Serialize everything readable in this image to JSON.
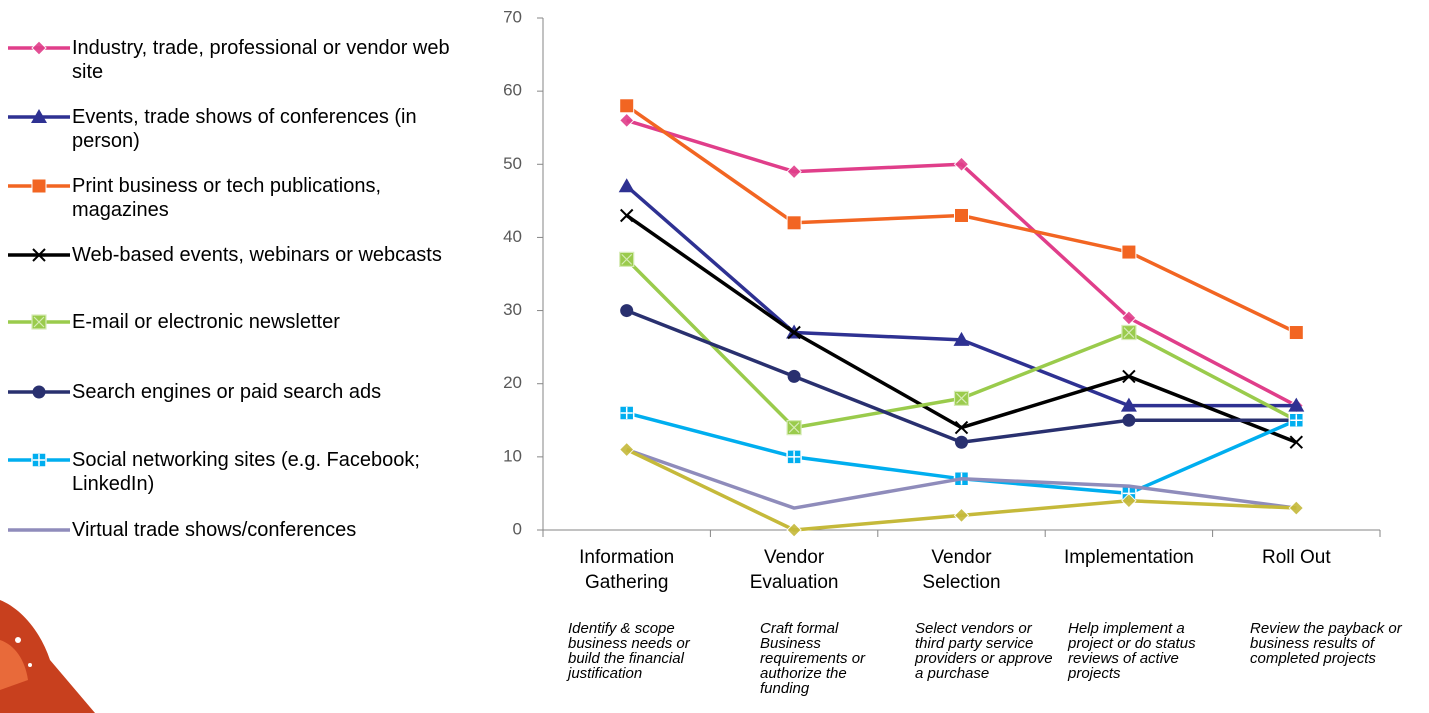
{
  "chart_data": {
    "type": "line",
    "categories": [
      "Information Gathering",
      "Vendor Evaluation",
      "Vendor Selection",
      "Implementation",
      "Roll Out"
    ],
    "category_notes": [
      "Identify & scope business needs or build the financial justification",
      "Craft formal Business requirements or authorize the funding",
      "Select vendors or third party service providers or approve a purchase",
      "Help implement a project or do status reviews of active projects",
      "Review the payback or business results of completed projects"
    ],
    "ylim": [
      0,
      70
    ],
    "yticks": [
      0,
      10,
      20,
      30,
      40,
      50,
      60,
      70
    ],
    "grid": false,
    "legend": "left",
    "series": [
      {
        "name": "Industry, trade, professional or vendor web site",
        "color": "#e03e8a",
        "marker": "diamond",
        "values": [
          56,
          49,
          50,
          29,
          17
        ]
      },
      {
        "name": "Events, trade shows of conferences (in person)",
        "color": "#2e3192",
        "marker": "triangle",
        "values": [
          47,
          27,
          26,
          17,
          17
        ]
      },
      {
        "name": "Print business or tech publications, magazines",
        "color": "#f26522",
        "marker": "square",
        "values": [
          58,
          42,
          43,
          38,
          27
        ]
      },
      {
        "name": "Web-based events, webinars or webcasts",
        "color": "#000000",
        "marker": "x",
        "values": [
          43,
          27,
          14,
          21,
          12
        ]
      },
      {
        "name": "E-mail or electronic newsletter",
        "color": "#9acb4c",
        "marker": "square-x",
        "values": [
          37,
          14,
          18,
          27,
          15
        ]
      },
      {
        "name": "Search engines or paid search ads",
        "color": "#29306f",
        "marker": "circle",
        "values": [
          30,
          21,
          12,
          15,
          15
        ]
      },
      {
        "name": "Social networking sites (e.g. Facebook; LinkedIn)",
        "color": "#00aeef",
        "marker": "plus-square",
        "values": [
          16,
          10,
          7,
          5,
          15
        ]
      },
      {
        "name": "Virtual trade shows/conferences",
        "color": "#8f8cbb",
        "marker": "none",
        "values": [
          11,
          3,
          7,
          6,
          3
        ]
      },
      {
        "color": "#c5b93a",
        "marker": "diamond",
        "values": [
          11,
          0,
          2,
          4,
          3
        ]
      }
    ]
  }
}
